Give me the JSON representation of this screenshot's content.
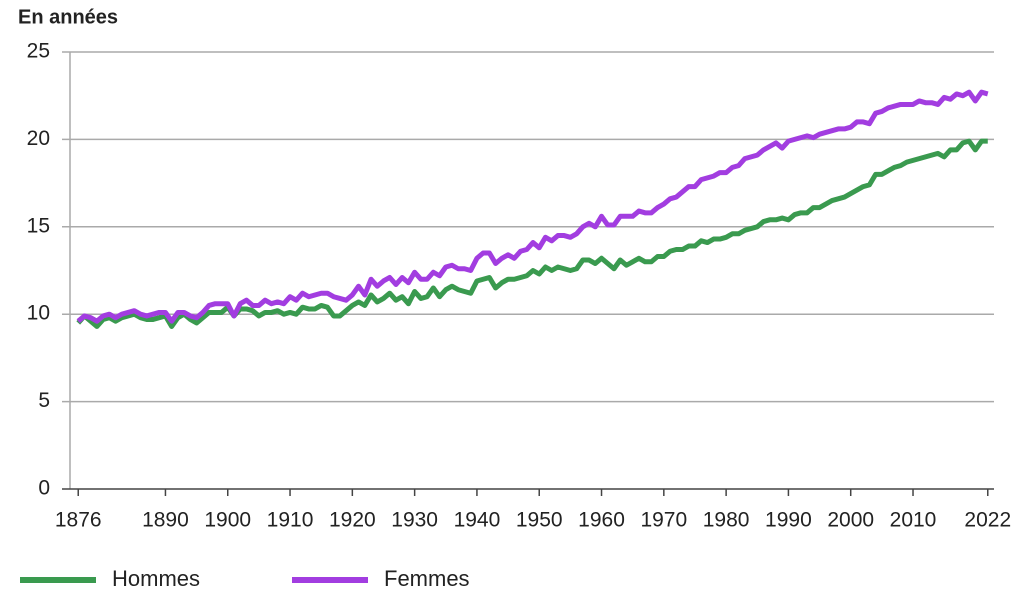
{
  "chart_data": {
    "type": "line",
    "title": "En années",
    "x": [
      1876,
      1877,
      1878,
      1879,
      1880,
      1881,
      1882,
      1883,
      1884,
      1885,
      1886,
      1887,
      1888,
      1889,
      1890,
      1891,
      1892,
      1893,
      1894,
      1895,
      1896,
      1897,
      1898,
      1899,
      1900,
      1901,
      1902,
      1903,
      1904,
      1905,
      1906,
      1907,
      1908,
      1909,
      1910,
      1911,
      1912,
      1913,
      1914,
      1915,
      1916,
      1917,
      1918,
      1919,
      1920,
      1921,
      1922,
      1923,
      1924,
      1925,
      1926,
      1927,
      1928,
      1929,
      1930,
      1931,
      1932,
      1933,
      1934,
      1935,
      1936,
      1937,
      1938,
      1939,
      1940,
      1941,
      1942,
      1943,
      1944,
      1945,
      1946,
      1947,
      1948,
      1949,
      1950,
      1951,
      1952,
      1953,
      1954,
      1955,
      1956,
      1957,
      1958,
      1959,
      1960,
      1961,
      1962,
      1963,
      1964,
      1965,
      1966,
      1967,
      1968,
      1969,
      1970,
      1971,
      1972,
      1973,
      1974,
      1975,
      1976,
      1977,
      1978,
      1979,
      1980,
      1981,
      1982,
      1983,
      1984,
      1985,
      1986,
      1987,
      1988,
      1989,
      1990,
      1991,
      1992,
      1993,
      1994,
      1995,
      1996,
      1997,
      1998,
      1999,
      2000,
      2001,
      2002,
      2003,
      2004,
      2005,
      2006,
      2007,
      2008,
      2009,
      2010,
      2011,
      2012,
      2013,
      2014,
      2015,
      2016,
      2017,
      2018,
      2019,
      2020,
      2021,
      2022
    ],
    "series": [
      {
        "name": "Hommes",
        "color": "#3a9a4f",
        "values": [
          9.5,
          9.9,
          9.6,
          9.3,
          9.7,
          9.8,
          9.6,
          9.8,
          9.9,
          10.0,
          9.8,
          9.7,
          9.7,
          9.8,
          9.9,
          9.3,
          9.8,
          10.0,
          9.7,
          9.5,
          9.8,
          10.1,
          10.1,
          10.1,
          10.4,
          9.9,
          10.3,
          10.3,
          10.2,
          9.9,
          10.1,
          10.1,
          10.2,
          10.0,
          10.1,
          10.0,
          10.4,
          10.3,
          10.3,
          10.5,
          10.4,
          9.9,
          9.9,
          10.2,
          10.5,
          10.7,
          10.5,
          11.1,
          10.7,
          10.9,
          11.2,
          10.8,
          11.0,
          10.6,
          11.3,
          10.9,
          11.0,
          11.5,
          11.0,
          11.4,
          11.6,
          11.4,
          11.3,
          11.2,
          11.9,
          12.0,
          12.1,
          11.5,
          11.8,
          12.0,
          12.0,
          12.1,
          12.2,
          12.5,
          12.3,
          12.7,
          12.5,
          12.7,
          12.6,
          12.5,
          12.6,
          13.1,
          13.1,
          12.9,
          13.2,
          12.9,
          12.6,
          13.1,
          12.8,
          13.0,
          13.2,
          13.0,
          13.0,
          13.3,
          13.3,
          13.6,
          13.7,
          13.7,
          13.9,
          13.9,
          14.2,
          14.1,
          14.3,
          14.3,
          14.4,
          14.6,
          14.6,
          14.8,
          14.9,
          15.0,
          15.3,
          15.4,
          15.4,
          15.5,
          15.4,
          15.7,
          15.8,
          15.8,
          16.1,
          16.1,
          16.3,
          16.5,
          16.6,
          16.7,
          16.9,
          17.1,
          17.3,
          17.4,
          18.0,
          18.0,
          18.2,
          18.4,
          18.5,
          18.7,
          18.8,
          18.9,
          19.0,
          19.1,
          19.2,
          19.0,
          19.4,
          19.4,
          19.8,
          19.9,
          19.4,
          19.9,
          19.9
        ]
      },
      {
        "name": "Femmes",
        "color": "#a23de0",
        "values": [
          9.6,
          9.9,
          9.8,
          9.6,
          9.9,
          10.0,
          9.8,
          10.0,
          10.1,
          10.2,
          10.0,
          9.9,
          10.0,
          10.1,
          10.1,
          9.6,
          10.1,
          10.1,
          9.9,
          9.8,
          10.1,
          10.5,
          10.6,
          10.6,
          10.6,
          9.9,
          10.6,
          10.8,
          10.5,
          10.5,
          10.8,
          10.6,
          10.7,
          10.6,
          11.0,
          10.8,
          11.2,
          11.0,
          11.1,
          11.2,
          11.2,
          11.0,
          10.9,
          10.8,
          11.1,
          11.6,
          11.1,
          12.0,
          11.6,
          11.9,
          12.1,
          11.7,
          12.1,
          11.8,
          12.4,
          12.0,
          12.0,
          12.4,
          12.2,
          12.7,
          12.8,
          12.6,
          12.6,
          12.5,
          13.2,
          13.5,
          13.5,
          12.9,
          13.2,
          13.4,
          13.2,
          13.6,
          13.7,
          14.1,
          13.8,
          14.4,
          14.2,
          14.5,
          14.5,
          14.4,
          14.6,
          15.0,
          15.2,
          15.0,
          15.6,
          15.1,
          15.1,
          15.6,
          15.6,
          15.6,
          15.9,
          15.8,
          15.8,
          16.1,
          16.3,
          16.6,
          16.7,
          17.0,
          17.3,
          17.3,
          17.7,
          17.8,
          17.9,
          18.1,
          18.1,
          18.4,
          18.5,
          18.9,
          19.0,
          19.1,
          19.4,
          19.6,
          19.8,
          19.5,
          19.9,
          20.0,
          20.1,
          20.2,
          20.1,
          20.3,
          20.4,
          20.5,
          20.6,
          20.6,
          20.7,
          21.0,
          21.0,
          20.9,
          21.5,
          21.6,
          21.8,
          21.9,
          22.0,
          22.0,
          22.0,
          22.2,
          22.1,
          22.1,
          22.0,
          22.4,
          22.3,
          22.6,
          22.5,
          22.7,
          22.2,
          22.7,
          22.6
        ]
      }
    ],
    "xlim": [
      1875,
      2023
    ],
    "xticks": [
      1876,
      1890,
      1900,
      1910,
      1920,
      1930,
      1940,
      1950,
      1960,
      1970,
      1980,
      1990,
      2000,
      2010,
      2022
    ],
    "ylim": [
      0,
      25
    ],
    "yticks": [
      0,
      5,
      10,
      15,
      20,
      25
    ],
    "grid": true
  }
}
